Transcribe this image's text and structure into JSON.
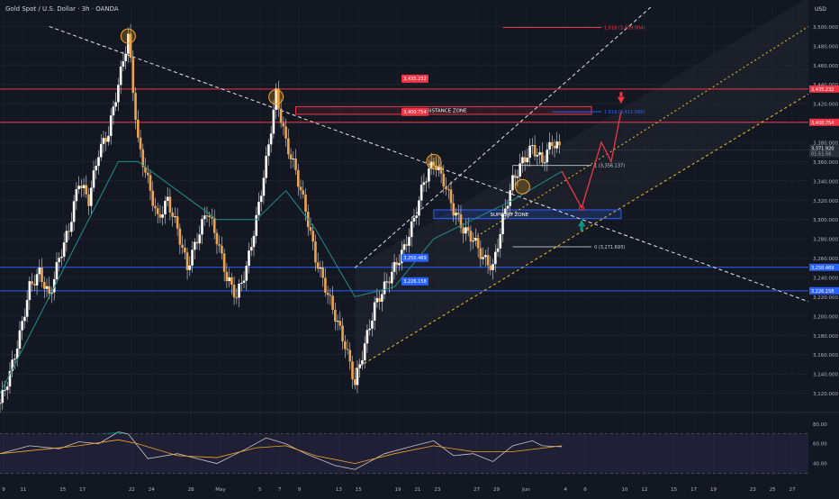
{
  "header": {
    "title": "Gold Spot / U.S. Dollar · 3h · OANDA",
    "currency": "USD"
  },
  "colors": {
    "background": "#131722",
    "candle": "#f0a44b",
    "wick": "#d9d9d9",
    "ema": "#1f8f88",
    "resistance": "#f23645",
    "support": "#2962ff",
    "channel": "#f5c518",
    "trendline": "#e6e6e6",
    "projection": "#f23645",
    "rsi": "#c8c8c8",
    "rsi_ma": "#f5a623"
  },
  "chart_data": [
    {
      "type": "candlestick",
      "title": "Gold Spot / U.S. Dollar · 3h · OANDA",
      "ylim": [
        3100,
        3520
      ],
      "y_ticks": [
        "3,500.000",
        "3,480.000",
        "3,460.000",
        "3,440.000",
        "3,420.000",
        "3,400.000",
        "3,380.000",
        "3,360.000",
        "3,340.000",
        "3,320.000",
        "3,300.000",
        "3,280.000",
        "3,260.000",
        "3,240.000",
        "3,220.000",
        "3,200.000",
        "3,180.000",
        "3,160.000",
        "3,140.000",
        "3,120.000"
      ],
      "y_tick_values": [
        3500,
        3480,
        3460,
        3440,
        3420,
        3400,
        3380,
        3360,
        3340,
        3320,
        3300,
        3280,
        3260,
        3240,
        3220,
        3200,
        3180,
        3160,
        3140,
        3120
      ],
      "x_ticks": [
        "9",
        "11",
        "15",
        "17",
        "22",
        "24",
        "28",
        "May",
        "5",
        "7",
        "9",
        "13",
        "15",
        "19",
        "21",
        "23",
        "27",
        "29",
        "Jun",
        "4",
        "6",
        "10",
        "12",
        "15",
        "17",
        "19",
        "23",
        "25",
        "27"
      ],
      "x_tick_positions": [
        0,
        2,
        6,
        8,
        13,
        15,
        19,
        22,
        26,
        28,
        30,
        34,
        36,
        40,
        42,
        44,
        48,
        50,
        53,
        57,
        59,
        63,
        65,
        68,
        70,
        72,
        76,
        78,
        80
      ],
      "close_path": [
        [
          0,
          3110
        ],
        [
          1,
          3140
        ],
        [
          2,
          3180
        ],
        [
          3,
          3230
        ],
        [
          4,
          3245
        ],
        [
          5,
          3220
        ],
        [
          6,
          3260
        ],
        [
          7,
          3290
        ],
        [
          8,
          3340
        ],
        [
          9,
          3320
        ],
        [
          10,
          3370
        ],
        [
          11,
          3390
        ],
        [
          12,
          3440
        ],
        [
          13,
          3490
        ],
        [
          14,
          3380
        ],
        [
          15,
          3340
        ],
        [
          16,
          3300
        ],
        [
          17,
          3320
        ],
        [
          18,
          3290
        ],
        [
          19,
          3250
        ],
        [
          20,
          3280
        ],
        [
          21,
          3310
        ],
        [
          22,
          3280
        ],
        [
          23,
          3240
        ],
        [
          24,
          3220
        ],
        [
          25,
          3250
        ],
        [
          26,
          3300
        ],
        [
          27,
          3360
        ],
        [
          28,
          3430
        ],
        [
          29,
          3380
        ],
        [
          30,
          3350
        ],
        [
          31,
          3310
        ],
        [
          32,
          3260
        ],
        [
          33,
          3230
        ],
        [
          34,
          3200
        ],
        [
          35,
          3170
        ],
        [
          36,
          3130
        ],
        [
          37,
          3170
        ],
        [
          38,
          3210
        ],
        [
          39,
          3230
        ],
        [
          40,
          3250
        ],
        [
          41,
          3270
        ],
        [
          42,
          3300
        ],
        [
          43,
          3340
        ],
        [
          44,
          3360
        ],
        [
          45,
          3340
        ],
        [
          46,
          3310
        ],
        [
          47,
          3290
        ],
        [
          48,
          3280
        ],
        [
          49,
          3260
        ],
        [
          50,
          3250
        ],
        [
          51,
          3300
        ],
        [
          52,
          3340
        ],
        [
          53,
          3360
        ],
        [
          54,
          3375
        ],
        [
          55,
          3360
        ],
        [
          56,
          3380
        ],
        [
          57,
          3372
        ]
      ],
      "current_price": "3,371.920",
      "countdown": "01:51:56",
      "ema_path": [
        [
          0,
          3120
        ],
        [
          4,
          3200
        ],
        [
          8,
          3280
        ],
        [
          12,
          3360
        ],
        [
          14,
          3360
        ],
        [
          18,
          3330
        ],
        [
          22,
          3300
        ],
        [
          26,
          3300
        ],
        [
          29,
          3330
        ],
        [
          32,
          3290
        ],
        [
          36,
          3220
        ],
        [
          40,
          3230
        ],
        [
          44,
          3280
        ],
        [
          48,
          3300
        ],
        [
          52,
          3320
        ],
        [
          57,
          3350
        ]
      ],
      "levels": [
        {
          "label": "3,435.232",
          "value": 3435.232,
          "kind": "resistance"
        },
        {
          "label": "3,400.754",
          "value": 3400.754,
          "kind": "resistance"
        },
        {
          "label": "3,250.469",
          "value": 3250.469,
          "kind": "support"
        },
        {
          "label": "3,226.158",
          "value": 3226.158,
          "kind": "support"
        }
      ],
      "zones": [
        {
          "label": "RESISTANCE ZONE",
          "low": 3409,
          "high": 3417,
          "kind": "resistance"
        },
        {
          "label": "SUPPORT ZONE",
          "low": 3301,
          "high": 3310,
          "kind": "support"
        }
      ],
      "fib_labels": [
        {
          "label": "1.618 (3,499.004)",
          "value": 3499.004
        },
        {
          "label": "1.618 (3,411.568)",
          "value": 3411.568
        },
        {
          "label": "1 (3,356.137)",
          "value": 3356.137
        },
        {
          "label": "0 (3,271.693)",
          "value": 3271.693
        }
      ],
      "projection_path": [
        [
          57,
          3350
        ],
        [
          59,
          3312
        ],
        [
          61,
          3380
        ],
        [
          62,
          3360
        ],
        [
          63,
          3412
        ]
      ]
    },
    {
      "type": "line",
      "title": "RSI",
      "ylim": [
        26,
        88
      ],
      "y_ticks": [
        "80.00",
        "60.00",
        "40.00"
      ],
      "y_tick_values": [
        80,
        60,
        40
      ],
      "bands": [
        70,
        30
      ],
      "rsi_path": [
        [
          0,
          50
        ],
        [
          3,
          58
        ],
        [
          6,
          55
        ],
        [
          8,
          62
        ],
        [
          10,
          60
        ],
        [
          12,
          72
        ],
        [
          13,
          70
        ],
        [
          15,
          45
        ],
        [
          18,
          50
        ],
        [
          22,
          40
        ],
        [
          25,
          55
        ],
        [
          27,
          66
        ],
        [
          29,
          60
        ],
        [
          31,
          50
        ],
        [
          34,
          38
        ],
        [
          36,
          34
        ],
        [
          39,
          50
        ],
        [
          42,
          58
        ],
        [
          44,
          63
        ],
        [
          46,
          48
        ],
        [
          48,
          50
        ],
        [
          50,
          42
        ],
        [
          52,
          58
        ],
        [
          54,
          63
        ],
        [
          55,
          58
        ],
        [
          57,
          57
        ]
      ],
      "ma_path": [
        [
          0,
          50
        ],
        [
          4,
          54
        ],
        [
          8,
          58
        ],
        [
          12,
          64
        ],
        [
          14,
          60
        ],
        [
          18,
          48
        ],
        [
          22,
          46
        ],
        [
          26,
          56
        ],
        [
          29,
          58
        ],
        [
          32,
          48
        ],
        [
          36,
          40
        ],
        [
          40,
          50
        ],
        [
          44,
          58
        ],
        [
          48,
          52
        ],
        [
          52,
          52
        ],
        [
          57,
          58
        ]
      ]
    }
  ]
}
